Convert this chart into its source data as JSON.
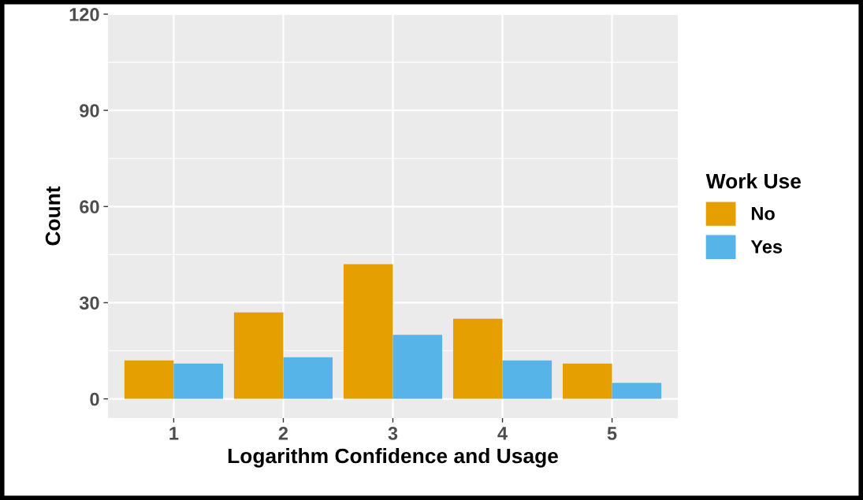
{
  "chart_data": {
    "type": "bar",
    "xlabel": "Logarithm Confidence and Usage",
    "ylabel": "Count",
    "legend_title": "Work Use",
    "categories": [
      "1",
      "2",
      "3",
      "4",
      "5"
    ],
    "series": [
      {
        "name": "No",
        "color": "#e69f00",
        "values": [
          12,
          27,
          42,
          25,
          11
        ]
      },
      {
        "name": "Yes",
        "color": "#56b4e9",
        "values": [
          11,
          13,
          20,
          12,
          5
        ]
      }
    ],
    "ylim": [
      -6,
      120
    ],
    "yticks": [
      0,
      30,
      60,
      90,
      120
    ],
    "grid": true,
    "legend": "right"
  }
}
